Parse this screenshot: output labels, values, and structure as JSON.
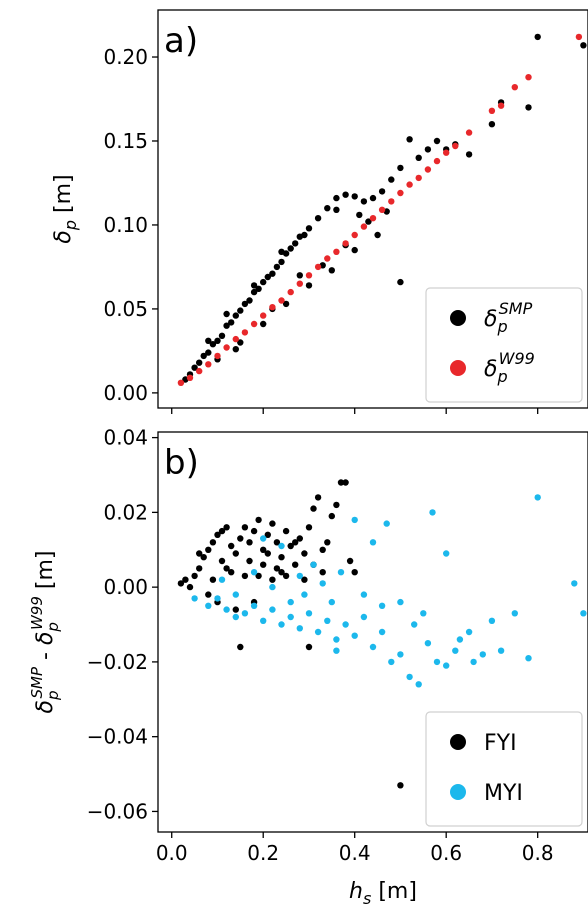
{
  "chart_data": [
    {
      "type": "scatter",
      "panel_label": "a)",
      "ylabel": "δ_p [m]",
      "xlim": [
        -0.03,
        0.91
      ],
      "ylim": [
        -0.009,
        0.228
      ],
      "yticks": [
        0.0,
        0.05,
        0.1,
        0.15,
        0.2
      ],
      "ytick_labels": [
        "0.00",
        "0.05",
        "0.10",
        "0.15",
        "0.20"
      ],
      "xticks": [
        0.0,
        0.2,
        0.4,
        0.6,
        0.8
      ],
      "grid": false,
      "legend": {
        "placement": "lower-right",
        "entries": [
          {
            "label": "δ_p^SMP",
            "color": "#000000"
          },
          {
            "label": "δ_p^W99",
            "color": "#e8282b"
          }
        ]
      },
      "series": [
        {
          "name": "δ_p^SMP",
          "color": "#000000",
          "points": [
            [
              0.03,
              0.008
            ],
            [
              0.04,
              0.011
            ],
            [
              0.05,
              0.015
            ],
            [
              0.06,
              0.018
            ],
            [
              0.07,
              0.022
            ],
            [
              0.08,
              0.024
            ],
            [
              0.09,
              0.029
            ],
            [
              0.1,
              0.031
            ],
            [
              0.11,
              0.034
            ],
            [
              0.12,
              0.04
            ],
            [
              0.13,
              0.042
            ],
            [
              0.14,
              0.046
            ],
            [
              0.15,
              0.049
            ],
            [
              0.16,
              0.053
            ],
            [
              0.17,
              0.055
            ],
            [
              0.18,
              0.06
            ],
            [
              0.19,
              0.062
            ],
            [
              0.2,
              0.066
            ],
            [
              0.21,
              0.069
            ],
            [
              0.22,
              0.071
            ],
            [
              0.23,
              0.075
            ],
            [
              0.24,
              0.078
            ],
            [
              0.25,
              0.083
            ],
            [
              0.26,
              0.086
            ],
            [
              0.27,
              0.089
            ],
            [
              0.28,
              0.093
            ],
            [
              0.3,
              0.098
            ],
            [
              0.32,
              0.104
            ],
            [
              0.34,
              0.11
            ],
            [
              0.36,
              0.116
            ],
            [
              0.38,
              0.118
            ],
            [
              0.4,
              0.117
            ],
            [
              0.42,
              0.114
            ],
            [
              0.44,
              0.116
            ],
            [
              0.46,
              0.12
            ],
            [
              0.48,
              0.127
            ],
            [
              0.5,
              0.134
            ],
            [
              0.52,
              0.151
            ],
            [
              0.54,
              0.14
            ],
            [
              0.56,
              0.145
            ],
            [
              0.58,
              0.15
            ],
            [
              0.6,
              0.145
            ],
            [
              0.62,
              0.148
            ],
            [
              0.65,
              0.142
            ],
            [
              0.7,
              0.16
            ],
            [
              0.72,
              0.173
            ],
            [
              0.78,
              0.17
            ],
            [
              0.8,
              0.212
            ],
            [
              0.9,
              0.207
            ],
            [
              0.5,
              0.066
            ],
            [
              0.1,
              0.02
            ],
            [
              0.15,
              0.03
            ],
            [
              0.2,
              0.041
            ],
            [
              0.25,
              0.053
            ],
            [
              0.3,
              0.064
            ],
            [
              0.35,
              0.073
            ],
            [
              0.4,
              0.085
            ],
            [
              0.45,
              0.094
            ],
            [
              0.14,
              0.026
            ],
            [
              0.22,
              0.05
            ],
            [
              0.28,
              0.07
            ],
            [
              0.33,
              0.076
            ],
            [
              0.38,
              0.088
            ],
            [
              0.43,
              0.102
            ],
            [
              0.08,
              0.031
            ],
            [
              0.12,
              0.047
            ],
            [
              0.18,
              0.064
            ],
            [
              0.24,
              0.084
            ],
            [
              0.29,
              0.094
            ],
            [
              0.36,
              0.109
            ],
            [
              0.41,
              0.106
            ],
            [
              0.47,
              0.108
            ]
          ]
        },
        {
          "name": "δ_p^W99",
          "color": "#e8282b",
          "points": [
            [
              0.02,
              0.006
            ],
            [
              0.04,
              0.009
            ],
            [
              0.06,
              0.013
            ],
            [
              0.08,
              0.017
            ],
            [
              0.1,
              0.022
            ],
            [
              0.12,
              0.027
            ],
            [
              0.14,
              0.032
            ],
            [
              0.16,
              0.036
            ],
            [
              0.18,
              0.041
            ],
            [
              0.2,
              0.046
            ],
            [
              0.22,
              0.051
            ],
            [
              0.24,
              0.055
            ],
            [
              0.26,
              0.06
            ],
            [
              0.28,
              0.065
            ],
            [
              0.3,
              0.07
            ],
            [
              0.32,
              0.075
            ],
            [
              0.34,
              0.08
            ],
            [
              0.36,
              0.084
            ],
            [
              0.38,
              0.089
            ],
            [
              0.4,
              0.094
            ],
            [
              0.42,
              0.099
            ],
            [
              0.44,
              0.104
            ],
            [
              0.46,
              0.109
            ],
            [
              0.48,
              0.114
            ],
            [
              0.5,
              0.119
            ],
            [
              0.52,
              0.124
            ],
            [
              0.54,
              0.128
            ],
            [
              0.56,
              0.133
            ],
            [
              0.58,
              0.138
            ],
            [
              0.6,
              0.143
            ],
            [
              0.62,
              0.147
            ],
            [
              0.65,
              0.155
            ],
            [
              0.7,
              0.168
            ],
            [
              0.72,
              0.171
            ],
            [
              0.75,
              0.182
            ],
            [
              0.78,
              0.188
            ],
            [
              0.89,
              0.212
            ]
          ]
        }
      ]
    },
    {
      "type": "scatter",
      "panel_label": "b)",
      "ylabel": "δ_p^SMP - δ_p^W99 [m]",
      "xlabel": "h_s [m]",
      "xlim": [
        -0.03,
        0.91
      ],
      "ylim": [
        -0.0655,
        0.0415
      ],
      "yticks": [
        -0.06,
        -0.04,
        -0.02,
        0.0,
        0.02,
        0.04
      ],
      "ytick_labels": [
        "−0.06",
        "−0.04",
        "−0.02",
        "0.00",
        "0.02",
        "0.04"
      ],
      "xticks": [
        0.0,
        0.2,
        0.4,
        0.6,
        0.8
      ],
      "xtick_labels": [
        "0.0",
        "0.2",
        "0.4",
        "0.6",
        "0.8"
      ],
      "grid": false,
      "legend": {
        "placement": "lower-right",
        "entries": [
          {
            "label": "FYI",
            "color": "#000000"
          },
          {
            "label": "MYI",
            "color": "#1cb8ec"
          }
        ]
      },
      "series": [
        {
          "name": "FYI",
          "color": "#000000",
          "points": [
            [
              0.02,
              0.001
            ],
            [
              0.03,
              0.002
            ],
            [
              0.04,
              0.0
            ],
            [
              0.05,
              0.003
            ],
            [
              0.06,
              0.005
            ],
            [
              0.07,
              0.008
            ],
            [
              0.08,
              0.01
            ],
            [
              0.09,
              0.012
            ],
            [
              0.1,
              0.014
            ],
            [
              0.11,
              0.015
            ],
            [
              0.12,
              0.016
            ],
            [
              0.13,
              0.011
            ],
            [
              0.14,
              0.009
            ],
            [
              0.15,
              0.013
            ],
            [
              0.16,
              0.016
            ],
            [
              0.17,
              0.012
            ],
            [
              0.18,
              0.015
            ],
            [
              0.19,
              0.018
            ],
            [
              0.2,
              0.01
            ],
            [
              0.21,
              0.014
            ],
            [
              0.22,
              0.017
            ],
            [
              0.23,
              0.012
            ],
            [
              0.24,
              0.008
            ],
            [
              0.25,
              0.015
            ],
            [
              0.26,
              0.011
            ],
            [
              0.27,
              0.006
            ],
            [
              0.28,
              0.013
            ],
            [
              0.29,
              0.009
            ],
            [
              0.3,
              0.016
            ],
            [
              0.31,
              0.021
            ],
            [
              0.32,
              0.024
            ],
            [
              0.33,
              0.01
            ],
            [
              0.34,
              0.012
            ],
            [
              0.35,
              0.019
            ],
            [
              0.36,
              0.022
            ],
            [
              0.37,
              0.028
            ],
            [
              0.38,
              0.028
            ],
            [
              0.39,
              0.007
            ],
            [
              0.4,
              0.004
            ],
            [
              0.08,
              -0.002
            ],
            [
              0.1,
              -0.004
            ],
            [
              0.12,
              0.005
            ],
            [
              0.14,
              -0.006
            ],
            [
              0.16,
              0.003
            ],
            [
              0.18,
              -0.004
            ],
            [
              0.2,
              0.006
            ],
            [
              0.22,
              0.002
            ],
            [
              0.24,
              0.004
            ],
            [
              0.15,
              -0.016
            ],
            [
              0.3,
              -0.016
            ],
            [
              0.5,
              -0.053
            ],
            [
              0.06,
              0.009
            ],
            [
              0.09,
              0.002
            ],
            [
              0.11,
              0.007
            ],
            [
              0.13,
              0.004
            ],
            [
              0.17,
              0.007
            ],
            [
              0.19,
              0.003
            ],
            [
              0.21,
              0.009
            ],
            [
              0.23,
              0.005
            ],
            [
              0.25,
              0.003
            ],
            [
              0.27,
              0.012
            ],
            [
              0.29,
              0.002
            ],
            [
              0.31,
              0.006
            ],
            [
              0.33,
              0.004
            ]
          ]
        },
        {
          "name": "MYI",
          "color": "#1cb8ec",
          "points": [
            [
              0.05,
              -0.003
            ],
            [
              0.08,
              -0.005
            ],
            [
              0.1,
              -0.003
            ],
            [
              0.12,
              -0.006
            ],
            [
              0.14,
              -0.008
            ],
            [
              0.16,
              -0.007
            ],
            [
              0.18,
              -0.005
            ],
            [
              0.2,
              -0.009
            ],
            [
              0.22,
              -0.006
            ],
            [
              0.24,
              -0.01
            ],
            [
              0.26,
              -0.008
            ],
            [
              0.28,
              -0.011
            ],
            [
              0.3,
              -0.007
            ],
            [
              0.32,
              -0.012
            ],
            [
              0.34,
              -0.009
            ],
            [
              0.36,
              -0.014
            ],
            [
              0.38,
              -0.01
            ],
            [
              0.4,
              -0.013
            ],
            [
              0.42,
              -0.008
            ],
            [
              0.44,
              -0.016
            ],
            [
              0.46,
              -0.012
            ],
            [
              0.48,
              -0.02
            ],
            [
              0.5,
              -0.018
            ],
            [
              0.52,
              -0.024
            ],
            [
              0.54,
              -0.026
            ],
            [
              0.56,
              -0.015
            ],
            [
              0.58,
              -0.02
            ],
            [
              0.6,
              -0.021
            ],
            [
              0.62,
              -0.017
            ],
            [
              0.65,
              -0.012
            ],
            [
              0.68,
              -0.018
            ],
            [
              0.7,
              -0.009
            ],
            [
              0.72,
              -0.017
            ],
            [
              0.75,
              -0.007
            ],
            [
              0.78,
              -0.019
            ],
            [
              0.8,
              0.024
            ],
            [
              0.88,
              0.001
            ],
            [
              0.9,
              -0.007
            ],
            [
              0.57,
              0.02
            ],
            [
              0.6,
              0.009
            ],
            [
              0.47,
              0.017
            ],
            [
              0.44,
              0.012
            ],
            [
              0.4,
              0.018
            ],
            [
              0.37,
              0.004
            ],
            [
              0.33,
              0.001
            ],
            [
              0.29,
              -0.002
            ],
            [
              0.26,
              -0.004
            ],
            [
              0.22,
              0.0
            ],
            [
              0.2,
              0.013
            ],
            [
              0.24,
              0.011
            ],
            [
              0.18,
              0.004
            ],
            [
              0.14,
              -0.002
            ],
            [
              0.11,
              0.002
            ],
            [
              0.35,
              -0.004
            ],
            [
              0.42,
              -0.002
            ],
            [
              0.46,
              -0.005
            ],
            [
              0.5,
              -0.004
            ],
            [
              0.53,
              -0.01
            ],
            [
              0.55,
              -0.007
            ],
            [
              0.63,
              -0.014
            ],
            [
              0.66,
              -0.02
            ],
            [
              0.28,
              0.003
            ],
            [
              0.31,
              0.006
            ],
            [
              0.36,
              -0.017
            ]
          ]
        }
      ]
    }
  ]
}
